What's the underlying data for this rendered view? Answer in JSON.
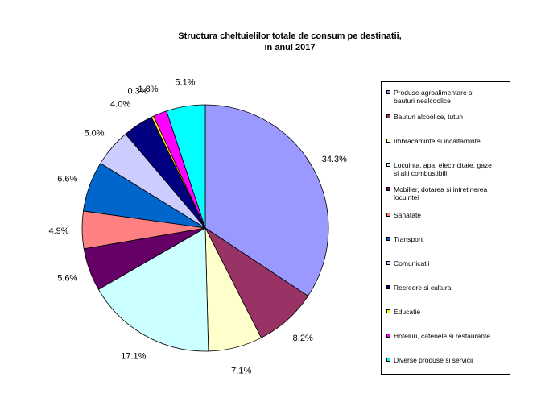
{
  "chart_data": {
    "type": "pie",
    "title": "Structura cheltuielilor totale de consum pe destinatii,",
    "subtitle": "in anul  2017",
    "start_angle_deg": 0,
    "direction": "clockwise",
    "slices": [
      {
        "name": "Produse agroalimentare si bauturi nealcoolice",
        "value": 34.3,
        "label": "34.3%",
        "color": "#9999ff"
      },
      {
        "name": "Bauturi alcoolice, tutun",
        "value": 8.2,
        "label": "8.2%",
        "color": "#993366"
      },
      {
        "name": "Imbracaminte si incaltaminte",
        "value": 7.1,
        "label": "7.1%",
        "color": "#ffffcc"
      },
      {
        "name": "Locuinta, apa, electricitate, gaze si alti combustibili",
        "value": 17.1,
        "label": "17.1%",
        "color": "#ccffff"
      },
      {
        "name": "Mobilier, dotarea si intretinerea locuintei",
        "value": 5.6,
        "label": "5.6%",
        "color": "#660066"
      },
      {
        "name": "Sanatate",
        "value": 4.9,
        "label": "4.9%",
        "color": "#ff8080"
      },
      {
        "name": "Transport",
        "value": 6.6,
        "label": "6.6%",
        "color": "#0066cc"
      },
      {
        "name": "Comunicatii",
        "value": 5.0,
        "label": "5.0%",
        "color": "#ccccff"
      },
      {
        "name": "Recreere si cultura",
        "value": 4.0,
        "label": "4.0%",
        "color": "#000080"
      },
      {
        "name": "Educatie",
        "value": 0.3,
        "label": "0.3%",
        "color": "#ffff00"
      },
      {
        "name": "Hoteluri, cafenele si restaurante",
        "value": 1.8,
        "label": "1.8%",
        "color": "#ff00ff"
      },
      {
        "name": "Diverse produse si servicii",
        "value": 5.1,
        "label": "5.1%",
        "color": "#00ffff"
      }
    ],
    "legend": {
      "placement": "right",
      "items": [
        {
          "lines": [
            "Produse agroalimentare si",
            "bauturi nealcoolice"
          ]
        },
        {
          "lines": [
            "Bauturi alcoolice, tutun"
          ]
        },
        {
          "lines": [
            "Imbracaminte si incaltaminte"
          ]
        },
        {
          "lines": [
            "Locuinta, apa, electricitate, gaze",
            "si alti combustibili"
          ]
        },
        {
          "lines": [
            "Mobilier, dotarea si intretinerea",
            "locuintei"
          ]
        },
        {
          "lines": [
            "Sanatate"
          ]
        },
        {
          "lines": [
            "Transport"
          ]
        },
        {
          "lines": [
            "Comunicatii"
          ]
        },
        {
          "lines": [
            "Recreere si cultura"
          ]
        },
        {
          "lines": [
            "Educatie"
          ]
        },
        {
          "lines": [
            "Hoteluri, cafenele si restaurante"
          ]
        },
        {
          "lines": [
            "Diverse produse si servicii"
          ]
        }
      ]
    }
  }
}
